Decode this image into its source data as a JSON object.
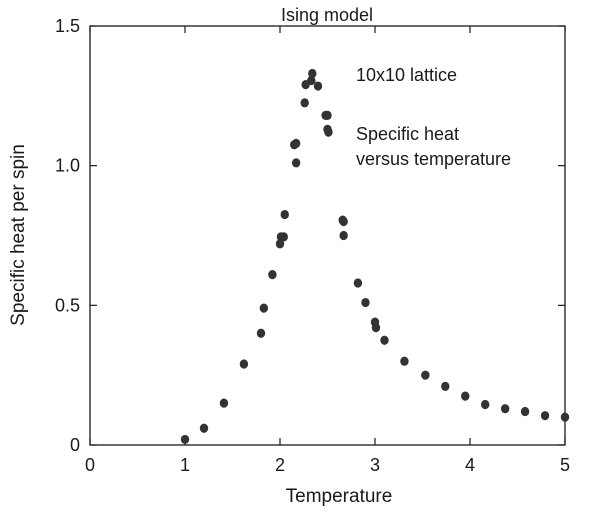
{
  "chart_data": {
    "type": "scatter",
    "title": "Ising model",
    "xlabel": "Temperature",
    "ylabel": "Specific heat per spin",
    "xlim": [
      0,
      5
    ],
    "ylim": [
      0,
      1.5
    ],
    "x_ticks": [
      0,
      1,
      2,
      3,
      4,
      5
    ],
    "x_tick_labels": [
      "0",
      "1",
      "2",
      "3",
      "4",
      "5"
    ],
    "y_ticks": [
      0,
      0.5,
      1.0,
      1.5
    ],
    "y_tick_labels": [
      "0",
      "0.5",
      "1.0",
      "1.5"
    ],
    "grid": false,
    "annotations": [
      "10x10 lattice",
      "Specific heat",
      "versus temperature"
    ],
    "marker_color": "#333333",
    "points": [
      {
        "x": 1.0,
        "y": 0.02
      },
      {
        "x": 1.2,
        "y": 0.06
      },
      {
        "x": 1.41,
        "y": 0.15
      },
      {
        "x": 1.62,
        "y": 0.29
      },
      {
        "x": 1.8,
        "y": 0.4
      },
      {
        "x": 1.83,
        "y": 0.49
      },
      {
        "x": 1.92,
        "y": 0.61
      },
      {
        "x": 2.0,
        "y": 0.72
      },
      {
        "x": 2.01,
        "y": 0.745
      },
      {
        "x": 2.04,
        "y": 0.745
      },
      {
        "x": 2.05,
        "y": 0.825
      },
      {
        "x": 2.15,
        "y": 1.075
      },
      {
        "x": 2.17,
        "y": 1.08
      },
      {
        "x": 2.17,
        "y": 1.01
      },
      {
        "x": 2.26,
        "y": 1.225
      },
      {
        "x": 2.27,
        "y": 1.29
      },
      {
        "x": 2.33,
        "y": 1.305
      },
      {
        "x": 2.34,
        "y": 1.33
      },
      {
        "x": 2.4,
        "y": 1.285
      },
      {
        "x": 2.48,
        "y": 1.18
      },
      {
        "x": 2.5,
        "y": 1.18
      },
      {
        "x": 2.5,
        "y": 1.13
      },
      {
        "x": 2.51,
        "y": 1.12
      },
      {
        "x": 2.66,
        "y": 0.805
      },
      {
        "x": 2.67,
        "y": 0.8
      },
      {
        "x": 2.67,
        "y": 0.75
      },
      {
        "x": 2.82,
        "y": 0.58
      },
      {
        "x": 2.9,
        "y": 0.51
      },
      {
        "x": 3.0,
        "y": 0.44
      },
      {
        "x": 3.01,
        "y": 0.42
      },
      {
        "x": 3.1,
        "y": 0.375
      },
      {
        "x": 3.31,
        "y": 0.3
      },
      {
        "x": 3.53,
        "y": 0.25
      },
      {
        "x": 3.74,
        "y": 0.21
      },
      {
        "x": 3.95,
        "y": 0.175
      },
      {
        "x": 4.16,
        "y": 0.145
      },
      {
        "x": 4.37,
        "y": 0.13
      },
      {
        "x": 4.58,
        "y": 0.12
      },
      {
        "x": 4.79,
        "y": 0.105
      },
      {
        "x": 5.0,
        "y": 0.1
      }
    ]
  }
}
